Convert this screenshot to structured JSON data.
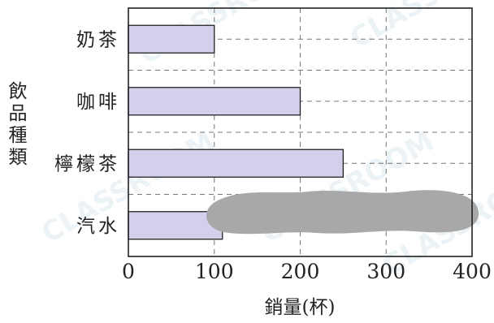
{
  "chart_data": {
    "type": "bar",
    "orientation": "horizontal",
    "categories": [
      "奶茶",
      "咖啡",
      "檸檬茶",
      "汽水"
    ],
    "values": [
      100,
      200,
      250,
      null
    ],
    "hidden_value_note": "汽水 bar partially covered by a grey blot",
    "xlabel": "銷量(杯)",
    "ylabel": "飲品種類",
    "xlim": [
      0,
      400
    ],
    "xticks": [
      0,
      100,
      200,
      300,
      400
    ],
    "grid": true,
    "legend": "none",
    "colors": {
      "bar": "#d4d0ec",
      "bar_edge": "#222222",
      "grid": "#777777",
      "blot": "#a8a8a8"
    }
  },
  "watermark_text": "CLASSROOM"
}
